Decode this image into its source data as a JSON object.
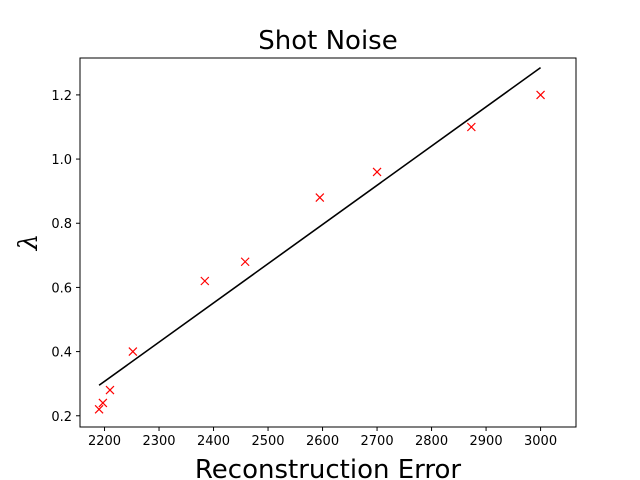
{
  "chart_data": {
    "type": "scatter",
    "title": "Shot Noise",
    "xlabel": "Reconstruction Error",
    "ylabel": "λ",
    "xlim": [
      2155,
      3065
    ],
    "ylim": [
      0.165,
      1.315
    ],
    "xticks": [
      2200,
      2300,
      2400,
      2500,
      2600,
      2700,
      2800,
      2900,
      3000
    ],
    "yticks": [
      0.2,
      0.4,
      0.6,
      0.8,
      1.0,
      1.2
    ],
    "ytick_labels": [
      "0.2",
      "0.4",
      "0.6",
      "0.8",
      "1.0",
      "1.2"
    ],
    "grid": false,
    "series": [
      {
        "kind": "scatter",
        "marker": "x",
        "color": "#ff0000",
        "x": [
          2190,
          2197,
          2210,
          2252,
          2384,
          2458,
          2595,
          2700,
          2873,
          3000
        ],
        "y": [
          0.22,
          0.24,
          0.28,
          0.4,
          0.62,
          0.68,
          0.88,
          0.96,
          1.1,
          1.2
        ]
      },
      {
        "kind": "line",
        "color": "#000000",
        "x": [
          2190,
          3000
        ],
        "y": [
          0.295,
          1.285
        ]
      }
    ]
  }
}
